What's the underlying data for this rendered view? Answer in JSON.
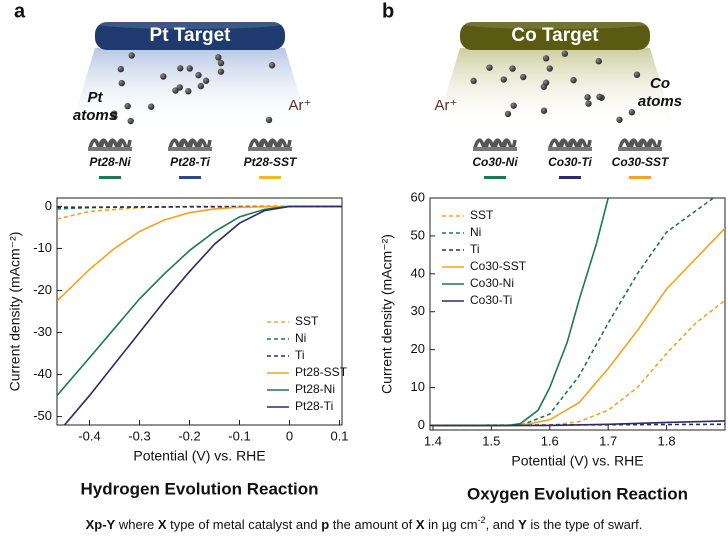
{
  "panel_labels": [
    "a",
    "b"
  ],
  "illustrations": [
    {
      "target": "Pt Target",
      "atoms": [
        "Pt",
        "atoms"
      ],
      "ion": "Ar⁺",
      "samples": [
        {
          "name": "Pt28-Ni",
          "color": "#1b7a4e"
        },
        {
          "name": "Pt28-Ti",
          "color": "#2b4a8b"
        },
        {
          "name": "Pt28-SST",
          "color": "#f5b81e"
        }
      ]
    },
    {
      "target": "Co Target",
      "atoms": [
        "Co",
        "atoms"
      ],
      "ion": "Ar⁺",
      "samples": [
        {
          "name": "Co30-Ni",
          "color": "#1b7a4e"
        },
        {
          "name": "Co30-Ti",
          "color": "#2b2b6b"
        },
        {
          "name": "Co30-SST",
          "color": "#f5a21e"
        }
      ]
    }
  ],
  "chart_data": [
    {
      "type": "line",
      "title": "Hydrogen Evolution Reaction",
      "x_label": "Potential (V) vs. RHE",
      "y_label": "Current density (mAcm⁻²)",
      "xlim": [
        -0.465,
        0.105
      ],
      "xticks": [
        -0.4,
        -0.3,
        -0.2,
        -0.1,
        0,
        0.1
      ],
      "ylim": [
        -52,
        2
      ],
      "yticks": [
        0,
        -10,
        -20,
        -30,
        -40,
        -50
      ],
      "legend": "lower right",
      "series": [
        {
          "name": "SST",
          "color": "#f5a21e",
          "dash": true,
          "x": [
            -0.465,
            -0.4,
            -0.3,
            -0.2,
            0.105
          ],
          "values": [
            -3,
            -1.2,
            -0.3,
            0,
            0
          ]
        },
        {
          "name": "Ni",
          "color": "#1b7a4e",
          "dash": true,
          "x": [
            -0.465,
            -0.4,
            -0.3,
            0.105
          ],
          "values": [
            -0.6,
            -0.3,
            -0.1,
            0
          ]
        },
        {
          "name": "Ti",
          "color": "#2b2b6b",
          "dash": true,
          "x": [
            -0.465,
            0.105
          ],
          "values": [
            -0.2,
            0
          ]
        },
        {
          "name": "Pt28-SST",
          "color": "#f5a21e",
          "dash": false,
          "x": [
            -0.465,
            -0.4,
            -0.35,
            -0.3,
            -0.25,
            -0.2,
            -0.15,
            -0.1,
            0,
            0.105
          ],
          "values": [
            -22.5,
            -15,
            -10,
            -6,
            -3.2,
            -1.5,
            -0.6,
            -0.2,
            0,
            0
          ]
        },
        {
          "name": "Pt28-Ni",
          "color": "#1b7a4e",
          "dash": false,
          "x": [
            -0.465,
            -0.4,
            -0.35,
            -0.3,
            -0.25,
            -0.2,
            -0.15,
            -0.1,
            -0.05,
            0,
            0.105
          ],
          "values": [
            -45,
            -36,
            -29,
            -22,
            -16,
            -10.5,
            -6,
            -2.5,
            -0.7,
            0,
            0
          ]
        },
        {
          "name": "Pt28-Ti",
          "color": "#2b2b6b",
          "dash": false,
          "x": [
            -0.45,
            -0.4,
            -0.35,
            -0.3,
            -0.25,
            -0.2,
            -0.15,
            -0.1,
            -0.05,
            0,
            0.105
          ],
          "values": [
            -52,
            -45,
            -37.5,
            -30,
            -22.5,
            -15.5,
            -9,
            -4,
            -1,
            0,
            0
          ]
        }
      ]
    },
    {
      "type": "line",
      "title": "Oxygen Evolution Reaction",
      "x_label": "Potential (V) vs. RHE",
      "y_label": "Current density (mAcm⁻²)",
      "xlim": [
        1.395,
        1.9
      ],
      "xticks": [
        1.4,
        1.5,
        1.6,
        1.7,
        1.8
      ],
      "ylim": [
        -1.2,
        60
      ],
      "yticks": [
        0,
        10,
        20,
        30,
        40,
        50,
        60
      ],
      "legend": "upper left",
      "series": [
        {
          "name": "SST",
          "color": "#f5a21e",
          "dash": true,
          "x": [
            1.395,
            1.6,
            1.65,
            1.7,
            1.75,
            1.8,
            1.85,
            1.9
          ],
          "values": [
            0,
            0,
            1,
            4,
            10,
            19,
            27,
            33
          ]
        },
        {
          "name": "Ni",
          "color": "#1b7a4e",
          "dash": true,
          "x": [
            1.395,
            1.55,
            1.6,
            1.65,
            1.7,
            1.75,
            1.8,
            1.88
          ],
          "values": [
            0,
            0,
            3,
            13,
            27,
            40,
            51,
            60
          ]
        },
        {
          "name": "Ti",
          "color": "#2b2b6b",
          "dash": true,
          "x": [
            1.395,
            1.9
          ],
          "values": [
            0,
            0.3
          ]
        },
        {
          "name": "Co30-SST",
          "color": "#f5a21e",
          "dash": false,
          "x": [
            1.395,
            1.55,
            1.6,
            1.65,
            1.7,
            1.75,
            1.8,
            1.9
          ],
          "values": [
            0,
            0,
            1.5,
            6,
            15,
            25,
            36,
            52
          ]
        },
        {
          "name": "Co30-Ni",
          "color": "#1b7a4e",
          "dash": false,
          "x": [
            1.395,
            1.53,
            1.55,
            1.58,
            1.6,
            1.63,
            1.65,
            1.68,
            1.7
          ],
          "values": [
            0,
            0,
            0.5,
            4,
            10,
            22,
            33,
            48,
            60
          ]
        },
        {
          "name": "Co30-Ti",
          "color": "#2b2b6b",
          "dash": false,
          "x": [
            1.395,
            1.6,
            1.7,
            1.8,
            1.9
          ],
          "values": [
            0,
            0,
            0.3,
            0.8,
            1.2
          ]
        }
      ]
    }
  ],
  "caption": [
    "Xp-Y",
    " where ",
    "X",
    " type of metal catalyst and ",
    "p",
    " the amount of ",
    "X",
    " in µg cm",
    "-2",
    ", and ",
    "Y",
    " is the type of swarf."
  ]
}
